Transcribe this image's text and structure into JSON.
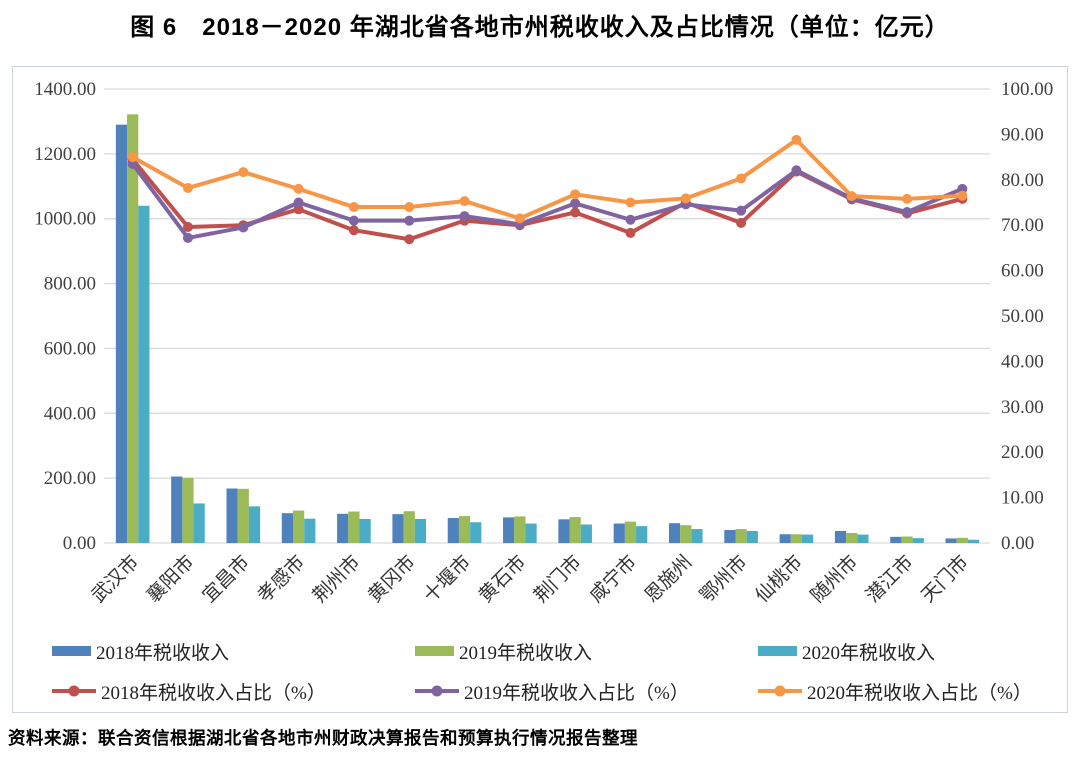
{
  "title": "图 6　2018－2020 年湖北省各地市州税收收入及占比情况（单位：亿元）",
  "source": "资料来源：联合资信根据湖北省各地市州财政决算报告和预算执行情况报告整理",
  "colors": {
    "bar_2018": "#4F81BD",
    "bar_2019": "#9BBB59",
    "bar_2020": "#4BACC6",
    "line_2018": "#C0504D",
    "line_2019": "#8064A2",
    "line_2020": "#F79646",
    "gridline": "#D9D9D9",
    "axis_text": "#404040",
    "box_border": "#ccd3da"
  },
  "chart_data": {
    "type": "bar",
    "subtype": "grouped bars with overlay lines (dual axis)",
    "title": "图 6　2018－2020 年湖北省各地市州税收收入及占比情况（单位：亿元）",
    "categories": [
      "武汉市",
      "襄阳市",
      "宜昌市",
      "孝感市",
      "荆州市",
      "黄冈市",
      "十堰市",
      "黄石市",
      "荆门市",
      "咸宁市",
      "恩施州",
      "鄂州市",
      "仙桃市",
      "随州市",
      "潜江市",
      "天门市"
    ],
    "series": [
      {
        "name": "2018年税收收入",
        "kind": "bar",
        "axis": "left",
        "color_key": "bar_2018",
        "values": [
          1290,
          205,
          168,
          92,
          90,
          89,
          77,
          79,
          73,
          60,
          61,
          40,
          27,
          37,
          19,
          14
        ]
      },
      {
        "name": "2019年税收收入",
        "kind": "bar",
        "axis": "left",
        "color_key": "bar_2019",
        "values": [
          1322,
          201,
          167,
          100,
          97,
          98,
          83,
          82,
          80,
          66,
          55,
          43,
          27,
          31,
          20,
          16
        ]
      },
      {
        "name": "2020年税收收入",
        "kind": "bar",
        "axis": "left",
        "color_key": "bar_2020",
        "values": [
          1040,
          122,
          113,
          75,
          74,
          74,
          64,
          60,
          57,
          52,
          43,
          37,
          26,
          26,
          15,
          10
        ]
      },
      {
        "name": "2018年税收收入占比（%）",
        "kind": "line",
        "axis": "right",
        "color_key": "line_2018",
        "values": [
          84.5,
          69.6,
          70.0,
          73.5,
          68.9,
          66.9,
          71.0,
          70.0,
          72.8,
          68.3,
          75.0,
          70.5,
          81.8,
          75.7,
          72.6,
          75.8
        ]
      },
      {
        "name": "2019年税收收入占比（%）",
        "kind": "line",
        "axis": "right",
        "color_key": "line_2019",
        "values": [
          83.5,
          67.2,
          69.5,
          75.0,
          71.0,
          71.0,
          72.0,
          70.2,
          74.8,
          71.2,
          74.6,
          73.2,
          82.1,
          75.9,
          72.9,
          78.0
        ]
      },
      {
        "name": "2020年税收收入占比（%）",
        "kind": "line",
        "axis": "right",
        "color_key": "line_2020",
        "values": [
          85.0,
          78.2,
          81.7,
          78.0,
          74.0,
          74.0,
          75.3,
          71.5,
          76.8,
          75.0,
          75.9,
          80.3,
          88.8,
          76.4,
          75.8,
          76.5
        ]
      }
    ],
    "left_axis": {
      "min": 0,
      "max": 1400,
      "step": 200,
      "tick_labels": [
        "0.00",
        "200.00",
        "400.00",
        "600.00",
        "800.00",
        "1000.00",
        "1200.00",
        "1400.00"
      ]
    },
    "right_axis": {
      "min": 0,
      "max": 100,
      "step": 10,
      "tick_labels": [
        "0.00",
        "10.00",
        "20.00",
        "30.00",
        "40.00",
        "50.00",
        "60.00",
        "70.00",
        "80.00",
        "90.00",
        "100.00"
      ]
    },
    "grid": "horizontal",
    "legend_position": "bottom"
  }
}
